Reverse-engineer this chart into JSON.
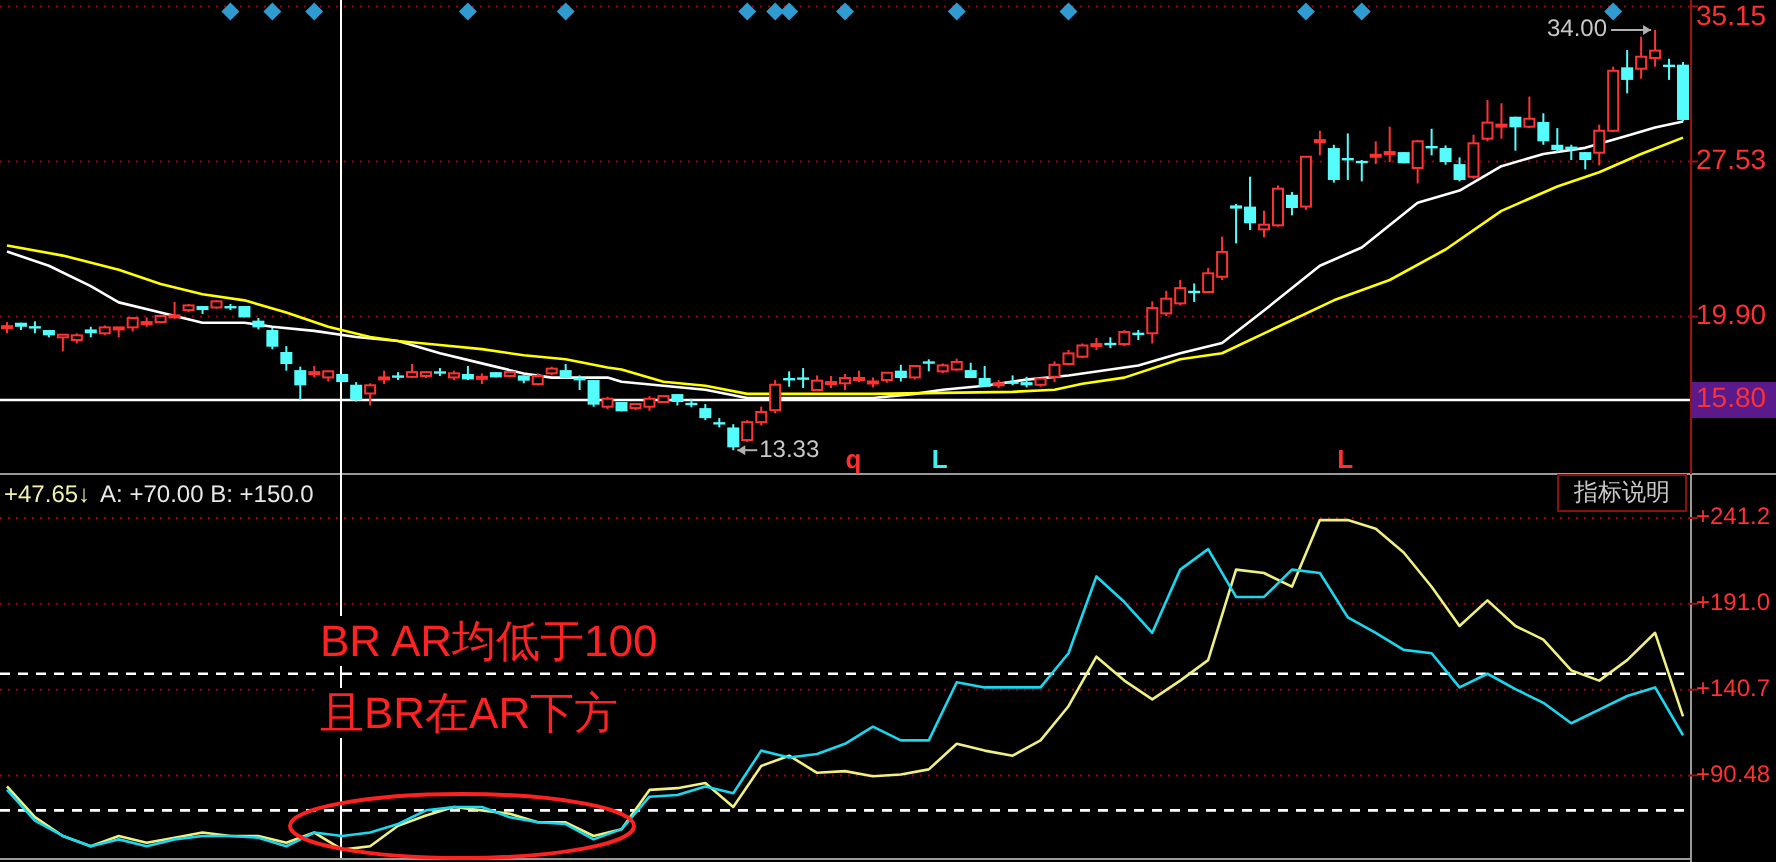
{
  "chart_data": [
    {
      "type": "candlestick",
      "categories": [
        null,
        null,
        null,
        null,
        null,
        null,
        null,
        null,
        null,
        null,
        null,
        null,
        null,
        null,
        null,
        null,
        null,
        null,
        null,
        null,
        null,
        null,
        null,
        null,
        null,
        null,
        null,
        null,
        null,
        null,
        null,
        null,
        null,
        null,
        null,
        null,
        null,
        null,
        null,
        null,
        null,
        null,
        null,
        null,
        null,
        null,
        null,
        null,
        null,
        null,
        null,
        null,
        null,
        null,
        null,
        null,
        null,
        null,
        null,
        null,
        null,
        null,
        null,
        null,
        null,
        null,
        null,
        null,
        null,
        null,
        null,
        null,
        null,
        null,
        null,
        null,
        null,
        null,
        null,
        null,
        null,
        null,
        null,
        null,
        null,
        null,
        null,
        null,
        null,
        null,
        null,
        null,
        null,
        null,
        null,
        null,
        null,
        null,
        null,
        null,
        null,
        null,
        null,
        null,
        null,
        null,
        null,
        null,
        null,
        null,
        null,
        null,
        null,
        null,
        null,
        null,
        null,
        null,
        null,
        null,
        null
      ],
      "ohlc": [
        [
          19.37,
          19.63,
          19.08,
          19.43
        ],
        [
          19.6,
          19.6,
          19.24,
          19.4
        ],
        [
          19.43,
          19.67,
          19.08,
          19.4
        ],
        [
          19.24,
          19.24,
          18.88,
          18.98
        ],
        [
          18.88,
          19.01,
          18.19,
          19.01
        ],
        [
          18.75,
          19.08,
          18.58,
          18.98
        ],
        [
          19.27,
          19.4,
          18.88,
          19.08
        ],
        [
          19.08,
          19.47,
          18.98,
          19.37
        ],
        [
          19.27,
          19.37,
          18.88,
          19.37
        ],
        [
          19.37,
          19.83,
          19.17,
          19.83
        ],
        [
          19.6,
          19.86,
          19.4,
          19.63
        ],
        [
          19.63,
          19.99,
          19.57,
          19.93
        ],
        [
          19.93,
          20.62,
          19.8,
          19.96
        ],
        [
          20.22,
          20.52,
          20.12,
          20.45
        ],
        [
          20.42,
          20.42,
          20.03,
          20.22
        ],
        [
          20.35,
          20.71,
          20.29,
          20.65
        ],
        [
          20.42,
          20.52,
          20.22,
          20.39
        ],
        [
          20.42,
          20.42,
          19.86,
          19.86
        ],
        [
          19.7,
          19.83,
          19.27,
          19.37
        ],
        [
          19.24,
          19.34,
          18.29,
          18.42
        ],
        [
          18.16,
          18.45,
          17.24,
          17.57
        ],
        [
          17.27,
          17.44,
          15.8,
          16.52
        ],
        [
          17.14,
          17.47,
          16.91,
          17.17
        ],
        [
          16.91,
          17.21,
          16.71,
          17.21
        ],
        [
          17.08,
          17.08,
          16.68,
          16.68
        ],
        [
          16.55,
          16.68,
          15.73,
          15.8
        ],
        [
          16.12,
          16.62,
          15.53,
          16.52
        ],
        [
          16.88,
          17.24,
          16.58,
          16.91
        ],
        [
          17.01,
          17.17,
          16.78,
          16.98
        ],
        [
          16.94,
          17.57,
          16.88,
          17.17
        ],
        [
          16.98,
          17.17,
          16.88,
          17.17
        ],
        [
          17.21,
          17.37,
          16.98,
          17.17
        ],
        [
          16.91,
          17.24,
          16.78,
          17.11
        ],
        [
          17.08,
          17.47,
          16.78,
          16.81
        ],
        [
          16.91,
          17.11,
          16.58,
          16.94
        ],
        [
          17.17,
          17.17,
          16.91,
          16.91
        ],
        [
          16.98,
          17.17,
          16.91,
          17.17
        ],
        [
          17.01,
          17.01,
          16.62,
          16.75
        ],
        [
          16.58,
          17.11,
          16.52,
          16.98
        ],
        [
          17.11,
          17.44,
          17.01,
          17.34
        ],
        [
          17.27,
          17.57,
          16.85,
          16.88
        ],
        [
          16.88,
          17.01,
          16.29,
          16.85
        ],
        [
          16.78,
          16.78,
          15.47,
          15.57
        ],
        [
          15.47,
          15.96,
          15.34,
          15.86
        ],
        [
          15.7,
          15.7,
          15.24,
          15.24
        ],
        [
          15.4,
          15.6,
          15.3,
          15.6
        ],
        [
          15.47,
          15.99,
          15.27,
          15.86
        ],
        [
          15.7,
          15.99,
          15.7,
          15.99
        ],
        [
          16.09,
          16.09,
          15.53,
          15.7
        ],
        [
          15.66,
          15.86,
          15.44,
          15.63
        ],
        [
          15.4,
          15.6,
          14.81,
          14.91
        ],
        [
          14.71,
          14.91,
          14.45,
          14.68
        ],
        [
          14.45,
          14.61,
          13.33,
          13.47
        ],
        [
          13.83,
          14.81,
          13.73,
          14.71
        ],
        [
          14.71,
          15.47,
          14.55,
          15.21
        ],
        [
          15.3,
          16.78,
          15.14,
          16.55
        ],
        [
          16.88,
          17.21,
          16.45,
          16.85
        ],
        [
          16.91,
          17.37,
          16.39,
          16.81
        ],
        [
          16.29,
          17.01,
          16.29,
          16.75
        ],
        [
          16.65,
          16.98,
          16.39,
          16.68
        ],
        [
          16.62,
          17.08,
          16.29,
          16.88
        ],
        [
          16.85,
          17.24,
          16.68,
          16.88
        ],
        [
          16.68,
          16.91,
          16.42,
          16.71
        ],
        [
          16.78,
          17.14,
          16.65,
          17.14
        ],
        [
          17.24,
          17.53,
          16.71,
          16.88
        ],
        [
          16.91,
          17.47,
          16.81,
          17.47
        ],
        [
          17.7,
          17.8,
          17.21,
          17.67
        ],
        [
          17.21,
          17.6,
          17.11,
          17.5
        ],
        [
          17.3,
          17.83,
          17.24,
          17.67
        ],
        [
          17.27,
          17.63,
          16.88,
          16.88
        ],
        [
          16.88,
          17.47,
          16.45,
          16.45
        ],
        [
          16.58,
          16.78,
          16.39,
          16.62
        ],
        [
          16.71,
          17.01,
          16.52,
          16.68
        ],
        [
          16.68,
          16.94,
          16.42,
          16.52
        ],
        [
          16.55,
          16.85,
          16.45,
          16.85
        ],
        [
          16.94,
          17.7,
          16.68,
          17.53
        ],
        [
          17.57,
          18.26,
          17.5,
          18.09
        ],
        [
          17.93,
          18.58,
          17.86,
          18.48
        ],
        [
          18.52,
          18.85,
          18.26,
          18.55
        ],
        [
          18.61,
          18.88,
          18.35,
          18.58
        ],
        [
          18.55,
          19.24,
          18.45,
          19.14
        ],
        [
          19.11,
          19.24,
          18.75,
          19.08
        ],
        [
          19.08,
          20.65,
          18.58,
          20.32
        ],
        [
          20.06,
          21.17,
          19.93,
          20.78
        ],
        [
          20.55,
          21.7,
          20.45,
          21.3
        ],
        [
          21.17,
          21.53,
          20.62,
          21.14
        ],
        [
          21.11,
          22.29,
          21.04,
          22.03
        ],
        [
          21.86,
          23.83,
          21.7,
          23.08
        ],
        [
          25.37,
          25.44,
          23.5,
          25.21
        ],
        [
          25.31,
          26.78,
          24.16,
          24.49
        ],
        [
          24.19,
          25.11,
          23.8,
          24.42
        ],
        [
          24.39,
          26.35,
          24.32,
          26.19
        ],
        [
          25.89,
          26.03,
          24.88,
          25.24
        ],
        [
          25.31,
          27.76,
          25.14,
          27.76
        ],
        [
          28.55,
          29.04,
          27.83,
          28.58
        ],
        [
          28.19,
          28.35,
          26.49,
          26.62
        ],
        [
          27.7,
          28.91,
          26.62,
          27.67
        ],
        [
          27.56,
          27.6,
          26.55,
          27.53
        ],
        [
          27.83,
          28.52,
          27.4,
          27.86
        ],
        [
          27.96,
          29.24,
          27.5,
          27.99
        ],
        [
          27.99,
          27.99,
          27.44,
          27.44
        ],
        [
          27.21,
          28.58,
          26.45,
          28.52
        ],
        [
          28.29,
          29.14,
          27.83,
          28.26
        ],
        [
          28.19,
          28.32,
          27.37,
          27.5
        ],
        [
          27.4,
          27.73,
          26.55,
          26.62
        ],
        [
          26.78,
          28.85,
          26.68,
          28.42
        ],
        [
          28.65,
          30.55,
          28.52,
          29.44
        ],
        [
          29.31,
          30.39,
          28.65,
          29.34
        ],
        [
          29.73,
          29.73,
          28.06,
          29.21
        ],
        [
          29.24,
          30.72,
          29.17,
          29.63
        ],
        [
          29.47,
          29.9,
          28.35,
          28.52
        ],
        [
          28.35,
          29.17,
          27.99,
          28.09
        ],
        [
          28.26,
          28.35,
          27.6,
          28.22
        ],
        [
          27.99,
          27.99,
          27.14,
          27.6
        ],
        [
          27.96,
          29.34,
          27.34,
          29.04
        ],
        [
          29.04,
          32.19,
          28.98,
          31.99
        ],
        [
          32.16,
          33.01,
          30.88,
          31.54
        ],
        [
          32.09,
          33.67,
          31.6,
          32.68
        ],
        [
          32.62,
          34.0,
          32.19,
          32.98
        ],
        [
          32.29,
          32.58,
          31.54,
          32.26
        ],
        [
          32.29,
          32.42,
          29.5,
          29.57
        ]
      ],
      "colors": [
        "#ff3232",
        "#54fcfc",
        "#54fcfc",
        "#54fcfc",
        "#ff3232",
        "#ff3232",
        "#54fcfc",
        "#ff3232",
        "#ff3232",
        "#ff3232",
        "#ff3232",
        "#ff3232",
        "#ff3232",
        "#ff3232",
        "#54fcfc",
        "#ff3232",
        "#54fcfc",
        "#54fcfc",
        "#54fcfc",
        "#54fcfc",
        "#54fcfc",
        "#54fcfc",
        "#ff3232",
        "#ff3232",
        "#54fcfc",
        "#54fcfc",
        "#ff3232",
        "#ff3232",
        "#54fcfc",
        "#ff3232",
        "#ff3232",
        "#54fcfc",
        "#ff3232",
        "#54fcfc",
        "#ff3232",
        "#54fcfc",
        "#ff3232",
        "#54fcfc",
        "#ff3232",
        "#ff3232",
        "#54fcfc",
        "#54fcfc",
        "#54fcfc",
        "#ff3232",
        "#54fcfc",
        "#ff3232",
        "#ff3232",
        "#ff3232",
        "#54fcfc",
        "#54fcfc",
        "#54fcfc",
        "#54fcfc",
        "#54fcfc",
        "#ff3232",
        "#ff3232",
        "#ff3232",
        "#54fcfc",
        "#54fcfc",
        "#ff3232",
        "#ff3232",
        "#ff3232",
        "#ff3232",
        "#ff3232",
        "#ff3232",
        "#54fcfc",
        "#ff3232",
        "#54fcfc",
        "#ff3232",
        "#ff3232",
        "#54fcfc",
        "#54fcfc",
        "#ff3232",
        "#54fcfc",
        "#54fcfc",
        "#ff3232",
        "#ff3232",
        "#ff3232",
        "#ff3232",
        "#ff3232",
        "#54fcfc",
        "#ff3232",
        "#54fcfc",
        "#ff3232",
        "#ff3232",
        "#ff3232",
        "#54fcfc",
        "#ff3232",
        "#ff3232",
        "#54fcfc",
        "#54fcfc",
        "#ff3232",
        "#ff3232",
        "#54fcfc",
        "#ff3232",
        "#ff3232",
        "#54fcfc",
        "#54fcfc",
        "#54fcfc",
        "#ff3232",
        "#ff3232",
        "#54fcfc",
        "#ff3232",
        "#54fcfc",
        "#54fcfc",
        "#54fcfc",
        "#ff3232",
        "#ff3232",
        "#ff3232",
        "#54fcfc",
        "#ff3232",
        "#54fcfc",
        "#54fcfc",
        "#54fcfc",
        "#54fcfc",
        "#ff3232",
        "#ff3232",
        "#54fcfc",
        "#ff3232",
        "#ff3232",
        "#54fcfc",
        "#54fcfc"
      ],
      "series": [
        {
          "type": "line",
          "color": "#ffffff",
          "values": [
            23.1,
            null,
            null,
            22.4,
            null,
            null,
            21.4,
            null,
            20.6,
            null,
            null,
            20.1,
            null,
            null,
            19.6,
            null,
            null,
            19.6,
            null,
            19.4,
            null,
            null,
            19.2,
            null,
            null,
            18.9,
            null,
            null,
            18.7,
            null,
            null,
            18.1,
            null,
            null,
            17.6,
            null,
            null,
            17.1,
            null,
            16.9,
            null,
            null,
            null,
            16.9,
            16.7,
            null,
            null,
            16.5,
            null,
            null,
            16.3,
            null,
            null,
            15.9,
            null,
            null,
            null,
            null,
            null,
            null,
            null,
            null,
            15.9,
            null,
            null,
            16.1,
            null,
            16.3,
            null,
            null,
            16.5,
            null,
            null,
            16.8,
            null,
            null,
            17.0,
            null,
            17.2,
            null,
            null,
            17.5,
            null,
            null,
            18.1,
            null,
            null,
            18.6,
            null,
            null,
            20.2,
            null,
            null,
            null,
            22.4,
            null,
            null,
            23.3,
            null,
            null,
            null,
            25.5,
            null,
            null,
            26.1,
            null,
            null,
            27.3,
            null,
            null,
            27.9,
            null,
            null,
            28.2,
            null,
            null,
            28.8,
            null,
            29.2,
            null,
            29.5
          ]
        },
        {
          "type": "line",
          "color": "#ffff00",
          "values": [
            23.4,
            null,
            null,
            null,
            22.9,
            null,
            null,
            null,
            22.2,
            null,
            null,
            21.5,
            null,
            null,
            21.0,
            null,
            null,
            20.7,
            null,
            null,
            20.1,
            null,
            null,
            19.4,
            null,
            null,
            18.9,
            null,
            18.7,
            null,
            null,
            18.5,
            null,
            null,
            18.3,
            null,
            null,
            18.0,
            null,
            null,
            17.8,
            null,
            null,
            17.4,
            17.3,
            null,
            null,
            16.7,
            null,
            null,
            16.5,
            null,
            null,
            16.1,
            null,
            null,
            null,
            null,
            null,
            null,
            null,
            null,
            16.1,
            null,
            null,
            null,
            null,
            null,
            null,
            null,
            null,
            null,
            16.2,
            null,
            null,
            16.3,
            null,
            16.6,
            null,
            null,
            16.9,
            null,
            null,
            null,
            17.8,
            null,
            null,
            18.1,
            null,
            null,
            null,
            19.4,
            null,
            null,
            null,
            20.7,
            null,
            null,
            null,
            21.7,
            null,
            null,
            null,
            23.2,
            null,
            null,
            null,
            25.1,
            null,
            null,
            null,
            26.3,
            null,
            null,
            27.0,
            null,
            null,
            27.9,
            null,
            null,
            28.7
          ]
        },
        {
          "type": "scatter",
          "marker": "diamond",
          "color": "#2f9bd0",
          "values": [
            null,
            null,
            null,
            null,
            null,
            null,
            null,
            null,
            null,
            null,
            null,
            null,
            null,
            null,
            null,
            null,
            34.9,
            null,
            null,
            34.9,
            null,
            null,
            34.9,
            null,
            null,
            null,
            null,
            null,
            null,
            null,
            null,
            null,
            null,
            34.9,
            null,
            null,
            null,
            null,
            null,
            null,
            34.9,
            null,
            null,
            null,
            null,
            null,
            null,
            null,
            null,
            null,
            null,
            null,
            null,
            34.9,
            null,
            34.9,
            34.9,
            null,
            null,
            null,
            34.9,
            null,
            null,
            null,
            null,
            null,
            null,
            null,
            34.9,
            null,
            null,
            null,
            null,
            null,
            null,
            null,
            34.9,
            null,
            null,
            null,
            null,
            null,
            null,
            null,
            null,
            null,
            null,
            null,
            null,
            null,
            null,
            null,
            null,
            34.9,
            null,
            null,
            null,
            34.9,
            null,
            null,
            null,
            null,
            null,
            null,
            null,
            null,
            null,
            null,
            null,
            null,
            null,
            null,
            null,
            null,
            null,
            34.9,
            null,
            null,
            null,
            null,
            null
          ]
        }
      ],
      "ylim": [
        12.16,
        35.47
      ],
      "yticks": [
        {
          "value": 35.15,
          "label": "35.15"
        },
        {
          "value": 27.53,
          "label": "27.53"
        },
        {
          "value": 19.9,
          "label": "19.90"
        }
      ],
      "grid": "y",
      "ref_lines": [
        {
          "axis": "y",
          "value": 15.8,
          "label": "15.80",
          "color": "#ffffff",
          "line_style": "solid"
        }
      ],
      "annotations": [
        "34.00",
        "13.33",
        "q",
        "L",
        "L"
      ]
    },
    {
      "type": "line",
      "categories": [
        null,
        null,
        null,
        null,
        null,
        null,
        null,
        null,
        null,
        null,
        null,
        null,
        null,
        null,
        null,
        null,
        null,
        null,
        null,
        null,
        null,
        null,
        null,
        null,
        null,
        null,
        null,
        null,
        null,
        null,
        null,
        null,
        null,
        null,
        null,
        null,
        null,
        null,
        null,
        null,
        null,
        null,
        null,
        null,
        null,
        null,
        null,
        null,
        null,
        null,
        null,
        null,
        null,
        null,
        null,
        null,
        null,
        null,
        null,
        null,
        null
      ],
      "series": [
        {
          "color": "#f0f080",
          "values": [
            84,
            66,
            55,
            49,
            55,
            51,
            54,
            57,
            55,
            55,
            51,
            57,
            47,
            49,
            61,
            67,
            72,
            70,
            68,
            63,
            63,
            55,
            59,
            82,
            83,
            86,
            72,
            96,
            102,
            92,
            93,
            90,
            91,
            94,
            109,
            105,
            102,
            111,
            131,
            160,
            146,
            135,
            146,
            158,
            211,
            209,
            201,
            240,
            240,
            235,
            221,
            201,
            178,
            193,
            178,
            170,
            152,
            146,
            158,
            174,
            125
          ]
        },
        {
          "color": "#1ad7f0",
          "values": [
            82,
            64,
            55,
            49,
            53,
            49,
            53,
            55,
            55,
            54,
            49,
            57,
            55,
            57,
            62,
            70,
            72,
            72,
            66,
            63,
            62,
            53,
            59,
            78,
            79,
            84,
            80,
            105,
            101,
            103,
            109,
            119,
            111,
            111,
            145,
            142,
            142,
            142,
            162,
            207,
            192,
            174,
            211,
            223,
            195,
            195,
            211,
            209,
            183,
            174,
            164,
            162,
            142,
            150,
            141,
            133,
            121,
            129,
            137,
            142,
            114
          ]
        }
      ],
      "ylim": [
        42.1,
        267.0
      ],
      "yticks": [
        {
          "value": 241.2,
          "label": "+241.2"
        },
        {
          "value": 191.0,
          "label": "+191.0"
        },
        {
          "value": 140.7,
          "label": "+140.7"
        },
        {
          "value": 90.48,
          "label": "+90.48"
        }
      ],
      "grid": "y",
      "ref_lines": [
        {
          "axis": "y",
          "value": 150,
          "label": null,
          "color": "#ffffff",
          "line_style": "dashed"
        },
        {
          "axis": "y",
          "value": 70,
          "label": null,
          "color": "#ffffff",
          "line_style": "dashed"
        }
      ],
      "annotations": [
        "+47.65↓",
        "A: +70.00 B: +150.0",
        "指标说明",
        "BR AR均低于100",
        "且BR在AR下方"
      ]
    }
  ]
}
